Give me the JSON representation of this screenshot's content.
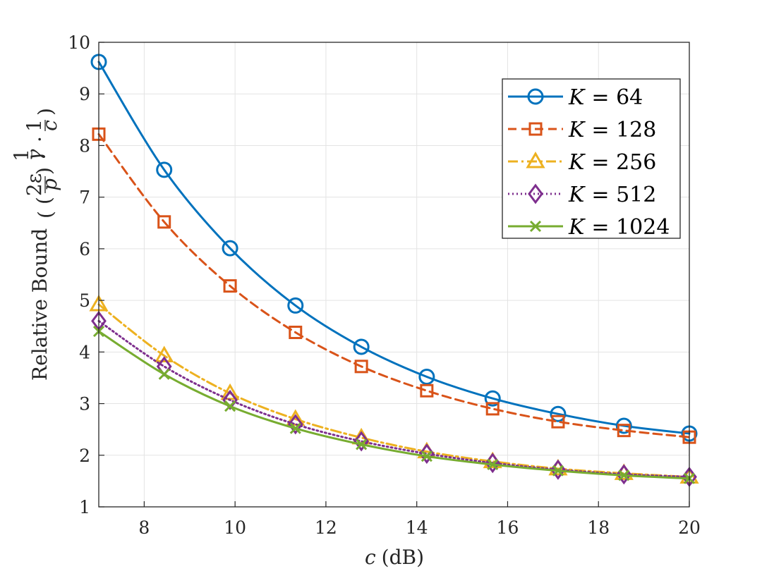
{
  "chart_data": {
    "type": "line",
    "title": "",
    "xlabel": "(dB)",
    "xlabel_var": "c",
    "ylabel": "Relative Bound",
    "ylabel_formula_parts": {
      "open": "(",
      "inner_open": "(",
      "num": "2ε",
      "den": "p",
      "inner_close": ")",
      "exp_num": "1",
      "exp_den": "γ",
      "dot": "·",
      "frac2_num": "1",
      "frac2_den": "c",
      "close": ")"
    },
    "xlim": [
      7,
      20
    ],
    "ylim": [
      1,
      10
    ],
    "xticks": [
      "8",
      "10",
      "12",
      "14",
      "16",
      "18",
      "20"
    ],
    "yticks": [
      "1",
      "2",
      "3",
      "4",
      "5",
      "6",
      "7",
      "8",
      "9",
      "10"
    ],
    "grid": true,
    "legend_position": "top-right",
    "x": [
      7.0,
      8.44,
      9.89,
      11.33,
      12.78,
      14.22,
      15.67,
      17.11,
      18.56,
      20.0
    ],
    "series": [
      {
        "name": "K = 64",
        "var": "K",
        "eq": "= 64",
        "color": "#0072BD",
        "dash": "solid",
        "marker": "circle",
        "values": [
          9.62,
          7.53,
          6.01,
          4.9,
          4.1,
          3.52,
          3.1,
          2.8,
          2.57,
          2.42
        ]
      },
      {
        "name": "K = 128",
        "var": "K",
        "eq": "= 128",
        "color": "#D95319",
        "dash": "dashed",
        "marker": "square",
        "values": [
          8.22,
          6.52,
          5.28,
          4.38,
          3.72,
          3.25,
          2.9,
          2.65,
          2.48,
          2.35
        ]
      },
      {
        "name": "K = 256",
        "var": "K",
        "eq": "= 256",
        "color": "#EDB120",
        "dash": "dashdot",
        "marker": "triangle",
        "values": [
          4.92,
          3.93,
          3.2,
          2.7,
          2.34,
          2.07,
          1.88,
          1.74,
          1.65,
          1.58
        ]
      },
      {
        "name": "K = 512",
        "var": "K",
        "eq": "= 512",
        "color": "#7E2F8E",
        "dash": "dotted",
        "marker": "diamond",
        "values": [
          4.6,
          3.72,
          3.07,
          2.6,
          2.27,
          2.03,
          1.85,
          1.72,
          1.63,
          1.58
        ]
      },
      {
        "name": "K = 1024",
        "var": "K",
        "eq": "= 1024",
        "color": "#77AC30",
        "dash": "solid",
        "marker": "x",
        "values": [
          4.4,
          3.57,
          2.95,
          2.52,
          2.21,
          1.98,
          1.82,
          1.7,
          1.61,
          1.55
        ]
      }
    ]
  }
}
